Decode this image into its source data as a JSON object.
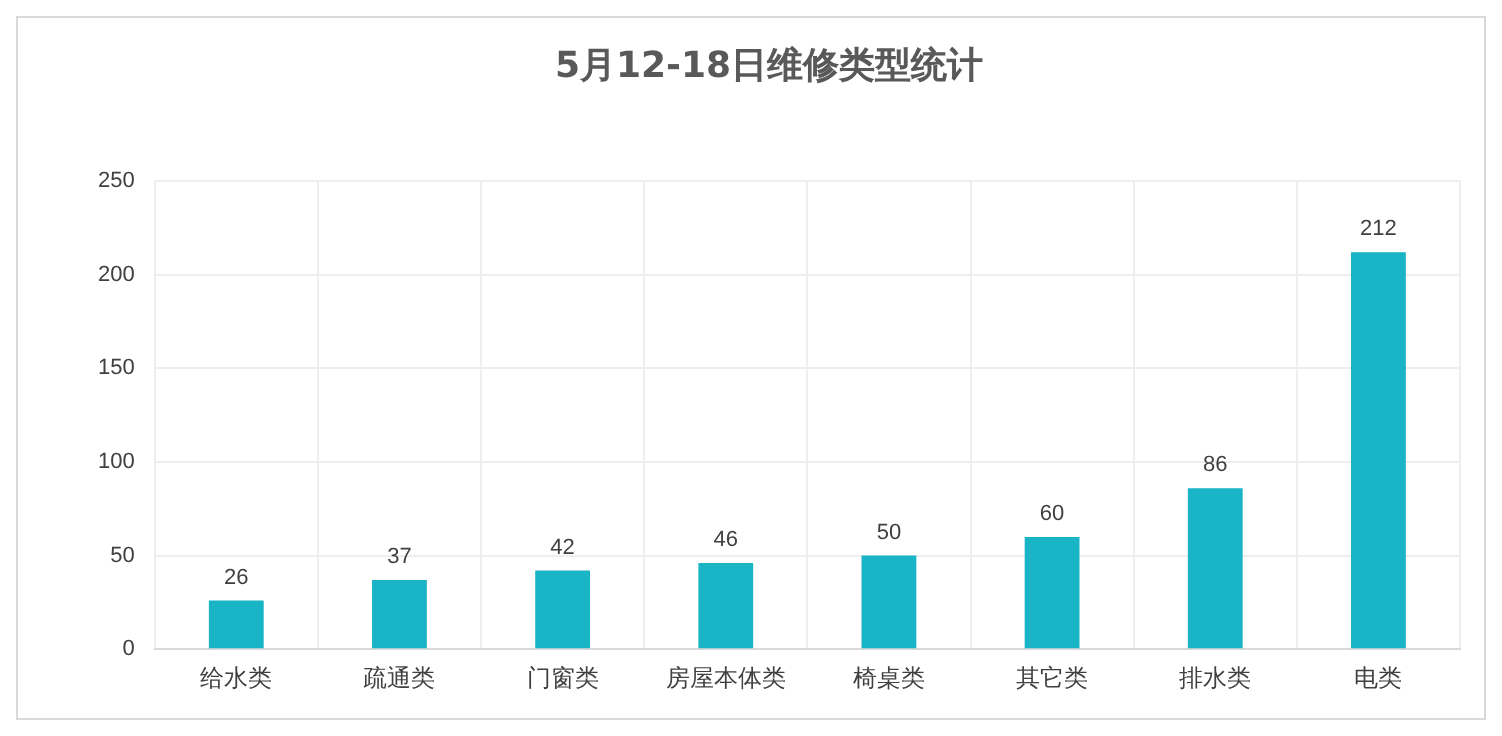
{
  "chart_data": {
    "type": "bar",
    "title": "5月12-18日维修类型统计",
    "categories": [
      "给水类",
      "疏通类",
      "门窗类",
      "房屋本体类",
      "椅桌类",
      "其它类",
      "排水类",
      "电类"
    ],
    "values": [
      26,
      37,
      42,
      46,
      50,
      60,
      86,
      212
    ],
    "color": "#19b4c6",
    "ylim": [
      0,
      250
    ],
    "yticks": [
      0,
      50,
      100,
      150,
      200,
      250
    ],
    "grid": true,
    "data_labels": true,
    "legend": false
  }
}
